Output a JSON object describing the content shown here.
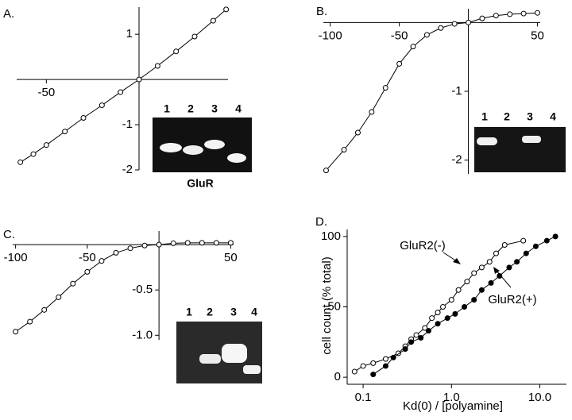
{
  "chart_data": [
    {
      "type": "line",
      "label": "A.",
      "axes_at_zero": true,
      "x": [
        -64,
        -57,
        -50,
        -40,
        -30,
        -20,
        -10,
        0,
        10,
        20,
        30,
        40,
        47
      ],
      "series": [
        {
          "color": "#000000",
          "marker_fill": "#ffffff",
          "values": [
            -1.83,
            -1.65,
            -1.45,
            -1.15,
            -0.85,
            -0.57,
            -0.28,
            0,
            0.3,
            0.62,
            0.95,
            1.3,
            1.55
          ]
        }
      ],
      "xlim": [
        -66,
        48
      ],
      "ylim": [
        -2.0,
        1.6
      ],
      "xticks": [
        -50
      ],
      "yticks": [
        1,
        -1,
        -2
      ],
      "inset": {
        "lanes": [
          "1",
          "2",
          "3",
          "4"
        ],
        "caption": "GluR"
      }
    },
    {
      "type": "line",
      "label": "B.",
      "axes_at_zero": true,
      "x": [
        -103,
        -90,
        -80,
        -70,
        -60,
        -50,
        -40,
        -30,
        -20,
        -10,
        0,
        10,
        20,
        30,
        40,
        50
      ],
      "series": [
        {
          "color": "#000000",
          "marker_fill": "#ffffff",
          "values": [
            -2.15,
            -1.85,
            -1.6,
            -1.3,
            -0.95,
            -0.6,
            -0.35,
            -0.18,
            -0.08,
            -0.02,
            0,
            0.06,
            0.1,
            0.12,
            0.13,
            0.14
          ]
        }
      ],
      "xlim": [
        -105,
        52
      ],
      "ylim": [
        -2.2,
        0.2
      ],
      "xticks": [
        -100,
        -50,
        50
      ],
      "yticks": [
        -1,
        -2
      ],
      "inset": {
        "lanes": [
          "1",
          "2",
          "3",
          "4"
        ]
      }
    },
    {
      "type": "line",
      "label": "C.",
      "axes_at_zero": true,
      "x": [
        -100,
        -90,
        -80,
        -70,
        -60,
        -50,
        -40,
        -30,
        -20,
        -10,
        0,
        10,
        20,
        30,
        40,
        50
      ],
      "series": [
        {
          "color": "#000000",
          "marker_fill": "#ffffff",
          "values": [
            -0.96,
            -0.85,
            -0.72,
            -0.58,
            -0.43,
            -0.3,
            -0.18,
            -0.09,
            -0.04,
            -0.01,
            0,
            0.015,
            0.02,
            0.02,
            0.02,
            0.02
          ]
        }
      ],
      "xlim": [
        -102,
        52
      ],
      "ylim": [
        -1.05,
        0.15
      ],
      "xticks": [
        -100,
        -50,
        50
      ],
      "yticks": [
        -0.5,
        {
          "value": -1.0,
          "label": "-1.0"
        }
      ],
      "inset": {
        "lanes": [
          "1",
          "2",
          "3",
          "4"
        ]
      }
    },
    {
      "type": "line",
      "label": "D.",
      "axes_at_zero": false,
      "xscale": "log",
      "x_label": "Kd(0) / [polyamine]",
      "y_label": "cell count (% total)",
      "series": [
        {
          "name": "GluR2(-)",
          "color": "#000000",
          "marker_fill": "#ffffff",
          "x": [
            0.08,
            0.1,
            0.13,
            0.18,
            0.25,
            0.3,
            0.35,
            0.4,
            0.5,
            0.6,
            0.7,
            0.8,
            1.0,
            1.2,
            1.5,
            1.8,
            2.2,
            2.7,
            3.2,
            4.0,
            6.5
          ],
          "values": [
            4,
            8,
            10,
            13,
            17,
            22,
            27,
            30,
            35,
            42,
            46,
            50,
            55,
            62,
            68,
            74,
            78,
            82,
            88,
            94,
            97
          ]
        },
        {
          "name": "GluR2(+)",
          "color": "#000000",
          "marker_fill": "#000000",
          "x": [
            0.13,
            0.18,
            0.22,
            0.3,
            0.35,
            0.45,
            0.55,
            0.7,
            0.9,
            1.1,
            1.4,
            1.8,
            2.2,
            2.8,
            3.5,
            4.5,
            5.5,
            7,
            9,
            12,
            15
          ],
          "values": [
            2,
            8,
            14,
            20,
            25,
            28,
            33,
            38,
            42,
            45,
            50,
            55,
            62,
            67,
            72,
            78,
            82,
            88,
            93,
            97,
            100
          ]
        }
      ],
      "xlim": [
        0.066,
        20
      ],
      "ylim": [
        -5,
        105
      ],
      "xticks": [
        0.1,
        {
          "value": 1,
          "label": "1.0"
        },
        {
          "value": 10,
          "label": "10.0"
        }
      ],
      "yticks": [
        0,
        50,
        100
      ]
    }
  ]
}
